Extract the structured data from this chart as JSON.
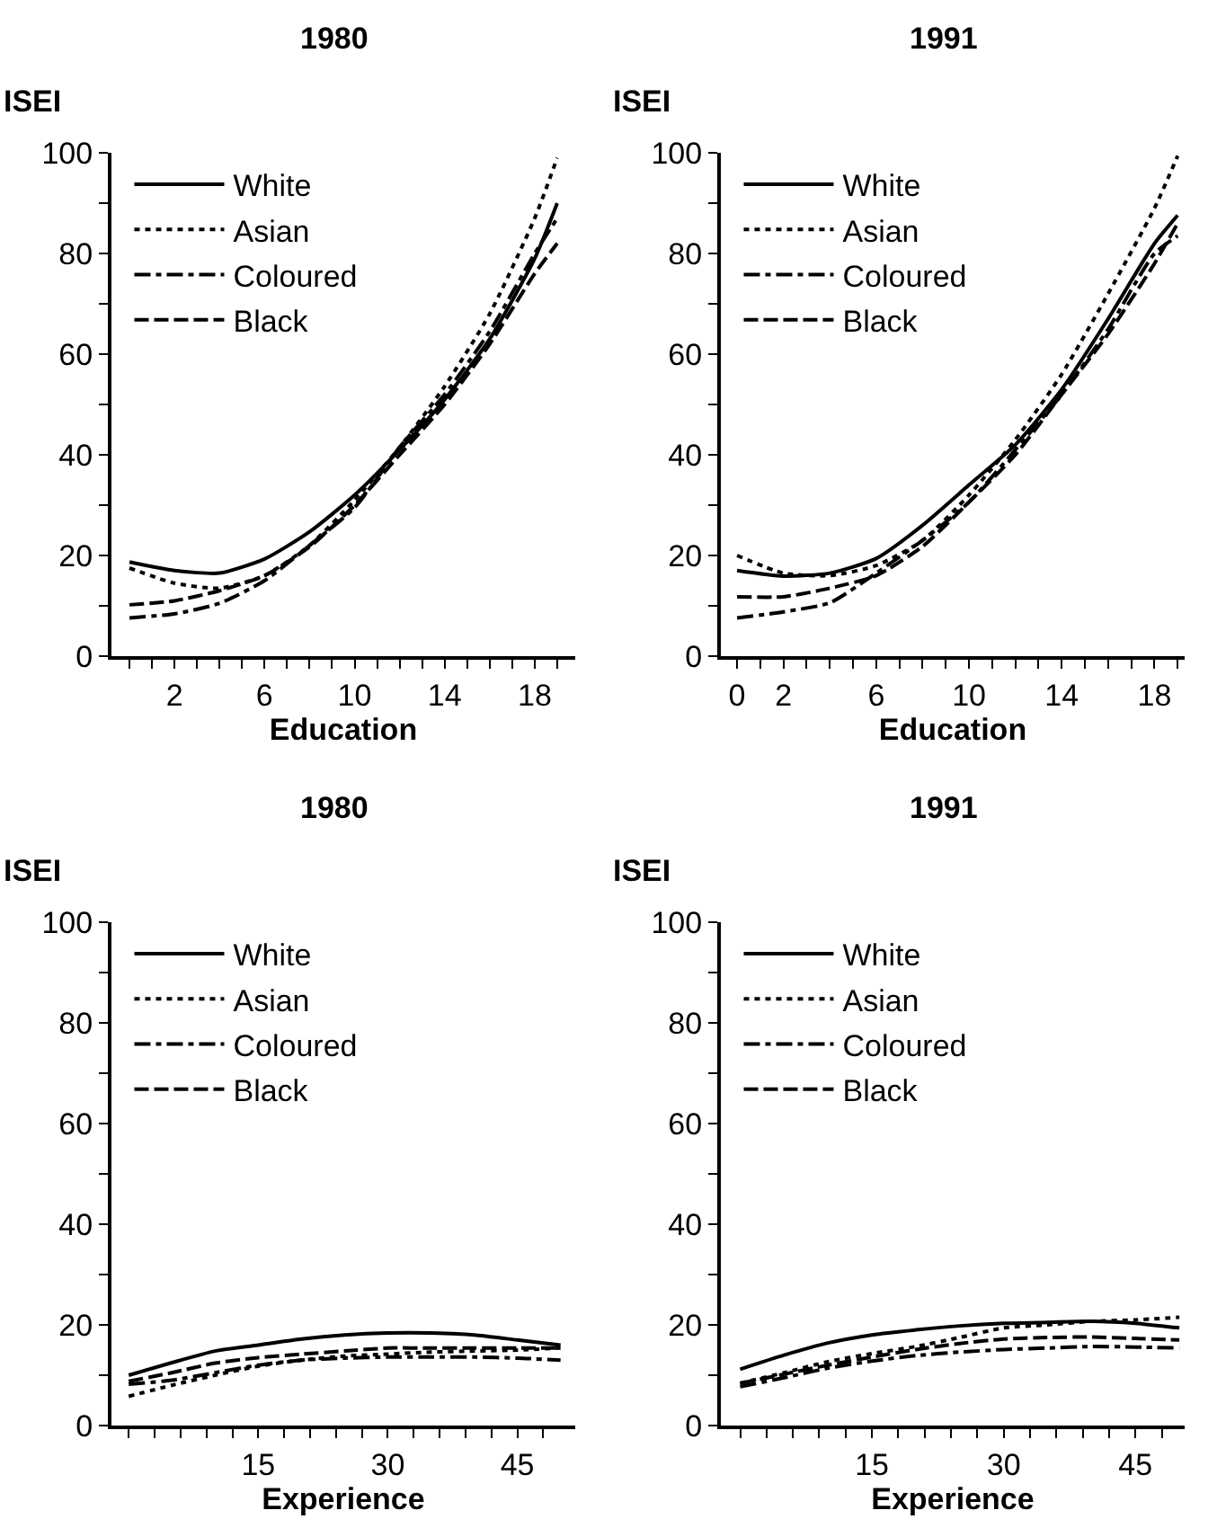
{
  "chart_data": [
    {
      "type": "line",
      "title": "1980",
      "xlabel": "Education",
      "ylabel": "ISEI",
      "legend": "top left",
      "xlim": [
        -0.8,
        19.8
      ],
      "ylim": [
        0,
        100
      ],
      "x": [
        0,
        2,
        4,
        6,
        8,
        10,
        12,
        14,
        16,
        18,
        19
      ],
      "xticks": [
        {
          "value": 0,
          "label": null
        },
        {
          "value": 1,
          "label": null
        },
        2,
        {
          "value": 3,
          "label": null
        },
        {
          "value": 4,
          "label": null
        },
        {
          "value": 5,
          "label": null
        },
        6,
        {
          "value": 7,
          "label": null
        },
        {
          "value": 8,
          "label": null
        },
        {
          "value": 9,
          "label": null
        },
        10,
        {
          "value": 11,
          "label": null
        },
        {
          "value": 12,
          "label": null
        },
        {
          "value": 13,
          "label": null
        },
        14,
        {
          "value": 15,
          "label": null
        },
        {
          "value": 16,
          "label": null
        },
        {
          "value": 17,
          "label": null
        },
        18,
        {
          "value": 19,
          "label": null
        }
      ],
      "yticks": [
        0,
        {
          "value": 10,
          "label": null
        },
        20,
        {
          "value": 30,
          "label": null
        },
        40,
        {
          "value": 50,
          "label": null
        },
        60,
        {
          "value": 70,
          "label": null
        },
        80,
        {
          "value": 90,
          "label": null
        },
        100
      ],
      "series": [
        {
          "name": "White",
          "color": "#000000",
          "line_style": "solid",
          "values": [
            18.7,
            17,
            16.5,
            19.3,
            24.7,
            32,
            41,
            51,
            63,
            79,
            90
          ]
        },
        {
          "name": "Asian",
          "color": "#000000",
          "line_style": "dotted",
          "values": [
            17.5,
            14.5,
            13.5,
            16,
            22,
            31,
            41.5,
            53.6,
            68,
            87,
            99
          ]
        },
        {
          "name": "Coloured",
          "color": "#000000",
          "line_style": "dashdot",
          "values": [
            7.6,
            8.4,
            10.5,
            15,
            22,
            29.5,
            41.5,
            52,
            64.5,
            80,
            87
          ]
        },
        {
          "name": "Black",
          "color": "#000000",
          "line_style": "dashed",
          "values": [
            10.2,
            11,
            13,
            16,
            21.7,
            30,
            40,
            50,
            62,
            76,
            82
          ]
        }
      ]
    },
    {
      "type": "line",
      "title": "1991",
      "xlabel": "Education",
      "ylabel": "ISEI",
      "legend": "top left",
      "xlim": [
        -0.7,
        19.3
      ],
      "ylim": [
        0,
        100
      ],
      "x": [
        0,
        2,
        4,
        6,
        8,
        10,
        12,
        14,
        16,
        18,
        19
      ],
      "xticks": [
        0,
        {
          "value": 1,
          "label": null
        },
        2,
        {
          "value": 3,
          "label": null
        },
        {
          "value": 4,
          "label": null
        },
        {
          "value": 5,
          "label": null
        },
        6,
        {
          "value": 7,
          "label": null
        },
        {
          "value": 8,
          "label": null
        },
        {
          "value": 9,
          "label": null
        },
        10,
        {
          "value": 11,
          "label": null
        },
        {
          "value": 12,
          "label": null
        },
        {
          "value": 13,
          "label": null
        },
        14,
        {
          "value": 15,
          "label": null
        },
        {
          "value": 16,
          "label": null
        },
        {
          "value": 17,
          "label": null
        },
        18,
        {
          "value": 19,
          "label": null
        }
      ],
      "yticks": [
        0,
        {
          "value": 10,
          "label": null
        },
        20,
        {
          "value": 30,
          "label": null
        },
        40,
        {
          "value": 50,
          "label": null
        },
        60,
        {
          "value": 70,
          "label": null
        },
        80,
        {
          "value": 90,
          "label": null
        },
        100
      ],
      "series": [
        {
          "name": "White",
          "color": "#000000",
          "line_style": "solid",
          "values": [
            17,
            15.9,
            16.5,
            19.4,
            26,
            34,
            42,
            53,
            67,
            82,
            87.6
          ]
        },
        {
          "name": "Asian",
          "color": "#000000",
          "line_style": "dotted",
          "values": [
            20,
            16.5,
            16,
            18,
            23,
            32,
            43,
            56,
            72,
            89,
            99.4
          ]
        },
        {
          "name": "Coloured",
          "color": "#000000",
          "line_style": "dashdot",
          "values": [
            7.6,
            8.8,
            10.6,
            16.5,
            23,
            30.6,
            41,
            52,
            65,
            80,
            83.5
          ]
        },
        {
          "name": "Black",
          "color": "#000000",
          "line_style": "dashed",
          "values": [
            11.8,
            11.8,
            13.5,
            16,
            21.8,
            30.6,
            40,
            52,
            64,
            78,
            86
          ]
        }
      ]
    },
    {
      "type": "line",
      "title": "1980",
      "xlabel": "Experience",
      "ylabel": "ISEI",
      "legend": "top left",
      "xlim": [
        -2,
        51.7
      ],
      "ylim": [
        0,
        100
      ],
      "x": [
        0,
        5,
        10,
        15,
        20,
        25,
        30,
        35,
        40,
        45,
        50
      ],
      "xticks": [
        {
          "value": 0,
          "label": null
        },
        {
          "value": 3,
          "label": null
        },
        {
          "value": 6,
          "label": null
        },
        {
          "value": 9,
          "label": null
        },
        {
          "value": 12,
          "label": null
        },
        15,
        {
          "value": 18,
          "label": null
        },
        {
          "value": 21,
          "label": null
        },
        {
          "value": 24,
          "label": null
        },
        {
          "value": 27,
          "label": null
        },
        30,
        {
          "value": 33,
          "label": null
        },
        {
          "value": 36,
          "label": null
        },
        {
          "value": 39,
          "label": null
        },
        {
          "value": 42,
          "label": null
        },
        45,
        {
          "value": 48,
          "label": null
        }
      ],
      "yticks": [
        0,
        {
          "value": 10,
          "label": null
        },
        20,
        {
          "value": 30,
          "label": null
        },
        40,
        {
          "value": 50,
          "label": null
        },
        60,
        {
          "value": 70,
          "label": null
        },
        80,
        {
          "value": 90,
          "label": null
        },
        100
      ],
      "series": [
        {
          "name": "White",
          "color": "#000000",
          "line_style": "solid",
          "values": [
            10,
            12.5,
            14.8,
            16,
            17.2,
            18,
            18.4,
            18.4,
            18,
            17,
            16
          ]
        },
        {
          "name": "Asian",
          "color": "#000000",
          "line_style": "dotted",
          "values": [
            5.8,
            8,
            10,
            11.8,
            13,
            13.8,
            14.2,
            14.6,
            14.8,
            15,
            15.4
          ]
        },
        {
          "name": "Coloured",
          "color": "#000000",
          "line_style": "dashdot",
          "values": [
            8.2,
            9,
            10.5,
            12,
            13,
            13.4,
            13.6,
            13.6,
            13.6,
            13.4,
            13
          ]
        },
        {
          "name": "Black",
          "color": "#000000",
          "line_style": "dashed",
          "values": [
            8.8,
            10.5,
            12.4,
            13.5,
            14.2,
            14.8,
            15.4,
            15.4,
            15.4,
            15.4,
            15.4
          ]
        }
      ]
    },
    {
      "type": "line",
      "title": "1991",
      "xlabel": "Experience",
      "ylabel": "ISEI",
      "legend": "top left",
      "xlim": [
        -2.2,
        50.6
      ],
      "ylim": [
        0,
        100
      ],
      "x": [
        0,
        5,
        10,
        15,
        20,
        25,
        30,
        35,
        40,
        45,
        50
      ],
      "xticks": [
        {
          "value": 0,
          "label": null
        },
        {
          "value": 3,
          "label": null
        },
        {
          "value": 6,
          "label": null
        },
        {
          "value": 9,
          "label": null
        },
        {
          "value": 12,
          "label": null
        },
        15,
        {
          "value": 18,
          "label": null
        },
        {
          "value": 21,
          "label": null
        },
        {
          "value": 24,
          "label": null
        },
        {
          "value": 27,
          "label": null
        },
        30,
        {
          "value": 33,
          "label": null
        },
        {
          "value": 36,
          "label": null
        },
        {
          "value": 39,
          "label": null
        },
        {
          "value": 42,
          "label": null
        },
        45,
        {
          "value": 48,
          "label": null
        }
      ],
      "yticks": [
        0,
        {
          "value": 10,
          "label": null
        },
        20,
        {
          "value": 30,
          "label": null
        },
        40,
        {
          "value": 50,
          "label": null
        },
        60,
        {
          "value": 70,
          "label": null
        },
        80,
        {
          "value": 90,
          "label": null
        },
        100
      ],
      "series": [
        {
          "name": "White",
          "color": "#000000",
          "line_style": "solid",
          "values": [
            11.2,
            14,
            16.4,
            18,
            19,
            19.8,
            20.3,
            20.5,
            20.7,
            20.3,
            19.4
          ]
        },
        {
          "name": "Asian",
          "color": "#000000",
          "line_style": "dotted",
          "values": [
            8.4,
            10.5,
            12.7,
            14.3,
            15.7,
            17.5,
            19.4,
            20,
            20.7,
            21,
            21.5
          ]
        },
        {
          "name": "Coloured",
          "color": "#000000",
          "line_style": "dashdot",
          "values": [
            7.7,
            9.5,
            11.4,
            12.8,
            13.9,
            14.6,
            15.1,
            15.4,
            15.7,
            15.6,
            15.4
          ]
        },
        {
          "name": "Black",
          "color": "#000000",
          "line_style": "dashed",
          "values": [
            8.4,
            10.2,
            12,
            13.6,
            15.1,
            16.3,
            17.2,
            17.5,
            17.6,
            17.3,
            17
          ]
        }
      ]
    }
  ]
}
